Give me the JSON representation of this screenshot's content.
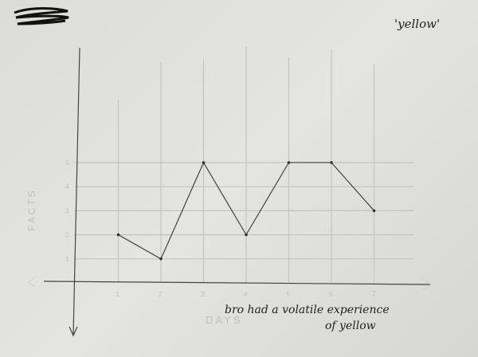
{
  "chart_data": {
    "type": "line",
    "title": "'yellow'",
    "xlabel": "DAYS",
    "ylabel": "FACTS",
    "categories": [
      1,
      2,
      3,
      4,
      5,
      6,
      7
    ],
    "series": [
      {
        "values": [
          2,
          1,
          5,
          2,
          5,
          5,
          3
        ]
      }
    ],
    "yticks": [
      1,
      2,
      3,
      4,
      5
    ],
    "xticks": [
      1,
      2,
      3,
      4,
      5,
      6,
      7
    ],
    "ylim": [
      0,
      5.5
    ],
    "xlim": [
      0,
      8
    ],
    "grid": true,
    "annotation": [
      "bro had a volatile experience",
      "of yellow"
    ],
    "colors": {
      "line": "#333333",
      "grid": "#c4c4c1",
      "paper": "#dcdcd9"
    }
  }
}
